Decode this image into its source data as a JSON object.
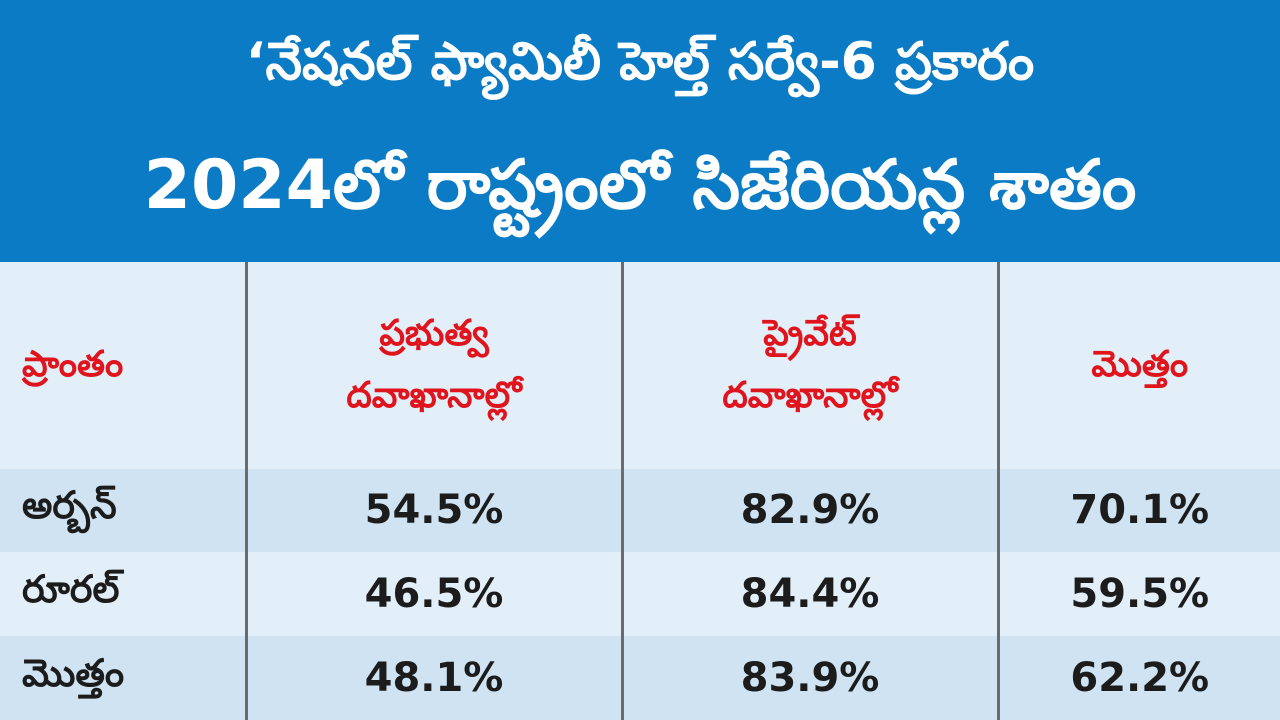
{
  "header": {
    "subtitle": "‘నేషనల్ ఫ్యామిలీ హెల్త్ సర్వే-6 ప్రకారం",
    "title": "2024లో రాష్ట్రంలో సిజేరియన్ల శాతం",
    "background": "#0a7bc4"
  },
  "table": {
    "headers": {
      "region": "ప్రాంతం",
      "government_line1": "ప్రభుత్వ",
      "government_line2": "దవాఖానాల్లో",
      "private_line1": "ప్రైవేట్",
      "private_line2": "దవాఖానాల్లో",
      "total": "మొత్తం"
    },
    "header_color": "#e0141c",
    "rows": [
      {
        "region": "అర్బన్",
        "government": "54.5%",
        "private": "82.9%",
        "total": "70.1%"
      },
      {
        "region": "రూరల్",
        "government": "46.5%",
        "private": "84.4%",
        "total": "59.5%"
      },
      {
        "region": "మొత్తం",
        "government": "48.1%",
        "private": "83.9%",
        "total": "62.2%"
      }
    ]
  }
}
